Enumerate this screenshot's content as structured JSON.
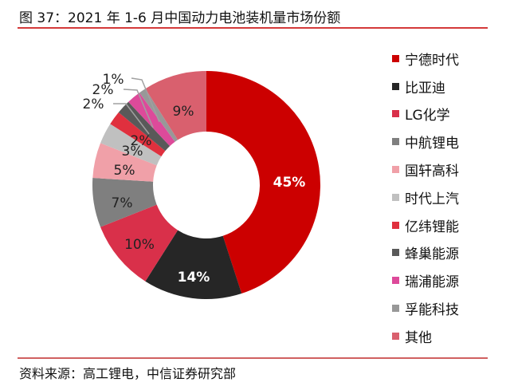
{
  "title": "图 37：2021 年 1-6 月中国动力电池装机量市场份额",
  "source": "资料来源：高工锂电，中信证券研究部",
  "chart_data": {
    "type": "pie",
    "donut": true,
    "title": "",
    "categories": [
      "宁德时代",
      "比亚迪",
      "LG化学",
      "中航锂电",
      "国轩高科",
      "时代上汽",
      "亿纬锂能",
      "蜂巢能源",
      "瑞浦能源",
      "孚能科技",
      "其他"
    ],
    "values": [
      45,
      14,
      10,
      7,
      5,
      3,
      2,
      2,
      2,
      1,
      9
    ],
    "labels": [
      "45%",
      "14%",
      "10%",
      "7%",
      "5%",
      "3%",
      "2%",
      "2%",
      "2%",
      "1%",
      "9%"
    ],
    "colors": [
      "#cc0000",
      "#262626",
      "#d9304a",
      "#7f7f7f",
      "#f0a0a8",
      "#c0c0c0",
      "#e0303e",
      "#595959",
      "#dd4a9a",
      "#989898",
      "#d9606e"
    ],
    "label_colors": [
      "#ffffff",
      "#ffffff",
      "#222222",
      "#222222",
      "#222222",
      "#222222",
      "#222222",
      "#222222",
      "#222222",
      "#222222",
      "#222222"
    ],
    "legend_position": "right",
    "start": "top, clockwise"
  }
}
